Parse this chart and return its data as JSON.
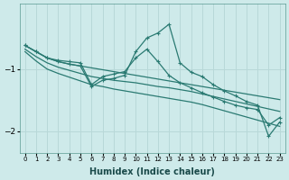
{
  "xlabel": "Humidex (Indice chaleur)",
  "background_color": "#ceeaea",
  "grid_color": "#b8d8d8",
  "line_color": "#2a7a72",
  "xlim": [
    -0.5,
    23.5
  ],
  "ylim": [
    -2.35,
    0.05
  ],
  "yticks": [
    -2,
    -1
  ],
  "xticks": [
    0,
    1,
    2,
    3,
    4,
    5,
    6,
    7,
    8,
    9,
    10,
    11,
    12,
    13,
    14,
    15,
    16,
    17,
    18,
    19,
    20,
    21,
    22,
    23
  ],
  "line1": [
    -0.62,
    -0.72,
    -0.82,
    -0.88,
    -0.92,
    -0.95,
    -0.98,
    -1.01,
    -1.04,
    -1.07,
    -1.1,
    -1.13,
    -1.16,
    -1.19,
    -1.22,
    -1.25,
    -1.28,
    -1.31,
    -1.34,
    -1.37,
    -1.4,
    -1.43,
    -1.46,
    -1.49
  ],
  "line2": [
    -0.68,
    -0.8,
    -0.9,
    -0.97,
    -1.02,
    -1.07,
    -1.12,
    -1.15,
    -1.18,
    -1.2,
    -1.22,
    -1.25,
    -1.28,
    -1.3,
    -1.33,
    -1.36,
    -1.4,
    -1.44,
    -1.48,
    -1.52,
    -1.56,
    -1.6,
    -1.64,
    -1.68
  ],
  "line3": [
    -0.72,
    -0.87,
    -1.0,
    -1.07,
    -1.13,
    -1.19,
    -1.25,
    -1.28,
    -1.32,
    -1.35,
    -1.38,
    -1.41,
    -1.44,
    -1.47,
    -1.5,
    -1.53,
    -1.57,
    -1.62,
    -1.67,
    -1.72,
    -1.77,
    -1.82,
    -1.87,
    -1.92
  ],
  "line4_y": [
    -0.62,
    -0.72,
    -0.82,
    -0.86,
    -0.88,
    -0.9,
    -1.25,
    -1.12,
    -1.08,
    -1.04,
    -0.82,
    -0.68,
    -0.88,
    -1.1,
    -1.22,
    -1.3,
    -1.38,
    -1.45,
    -1.52,
    -1.58,
    -1.62,
    -1.65,
    -1.9,
    -1.78
  ],
  "line5_y": [
    -0.62,
    -0.72,
    -0.82,
    -0.88,
    -0.92,
    -0.95,
    -1.28,
    -1.18,
    -1.15,
    -1.1,
    -0.72,
    -0.5,
    -0.42,
    -0.28,
    -0.9,
    -1.05,
    -1.12,
    -1.25,
    -1.35,
    -1.43,
    -1.52,
    -1.58,
    -2.08,
    -1.85
  ]
}
